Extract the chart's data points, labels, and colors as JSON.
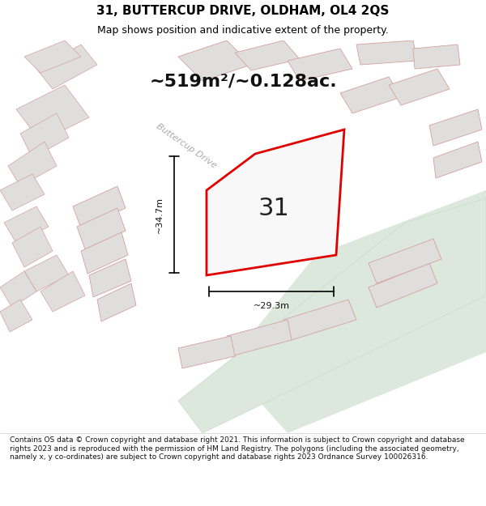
{
  "title": "31, BUTTERCUP DRIVE, OLDHAM, OL4 2QS",
  "subtitle": "Map shows position and indicative extent of the property.",
  "area_text": "~519m²/~0.128ac.",
  "width_text": "~29.3m",
  "height_text": "~34.7m",
  "property_number": "31",
  "footer": "Contains OS data © Crown copyright and database right 2021. This information is subject to Crown copyright and database rights 2023 and is reproduced with the permission of HM Land Registry. The polygons (including the associated geometry, namely x, y co-ordinates) are subject to Crown copyright and database rights 2023 Ordnance Survey 100026316.",
  "bg_color": "#f5f4f2",
  "map_bg": "#f0efed",
  "property_fill": "#f8f8f8",
  "property_edge": "#e00000",
  "road_fill": "#dce8dc",
  "building_fill": "#e0dedd",
  "building_edge": "#d4a0a0",
  "road_label": "Buttercup Drive",
  "title_fontsize": 11,
  "subtitle_fontsize": 9,
  "footer_fontsize": 6.5
}
